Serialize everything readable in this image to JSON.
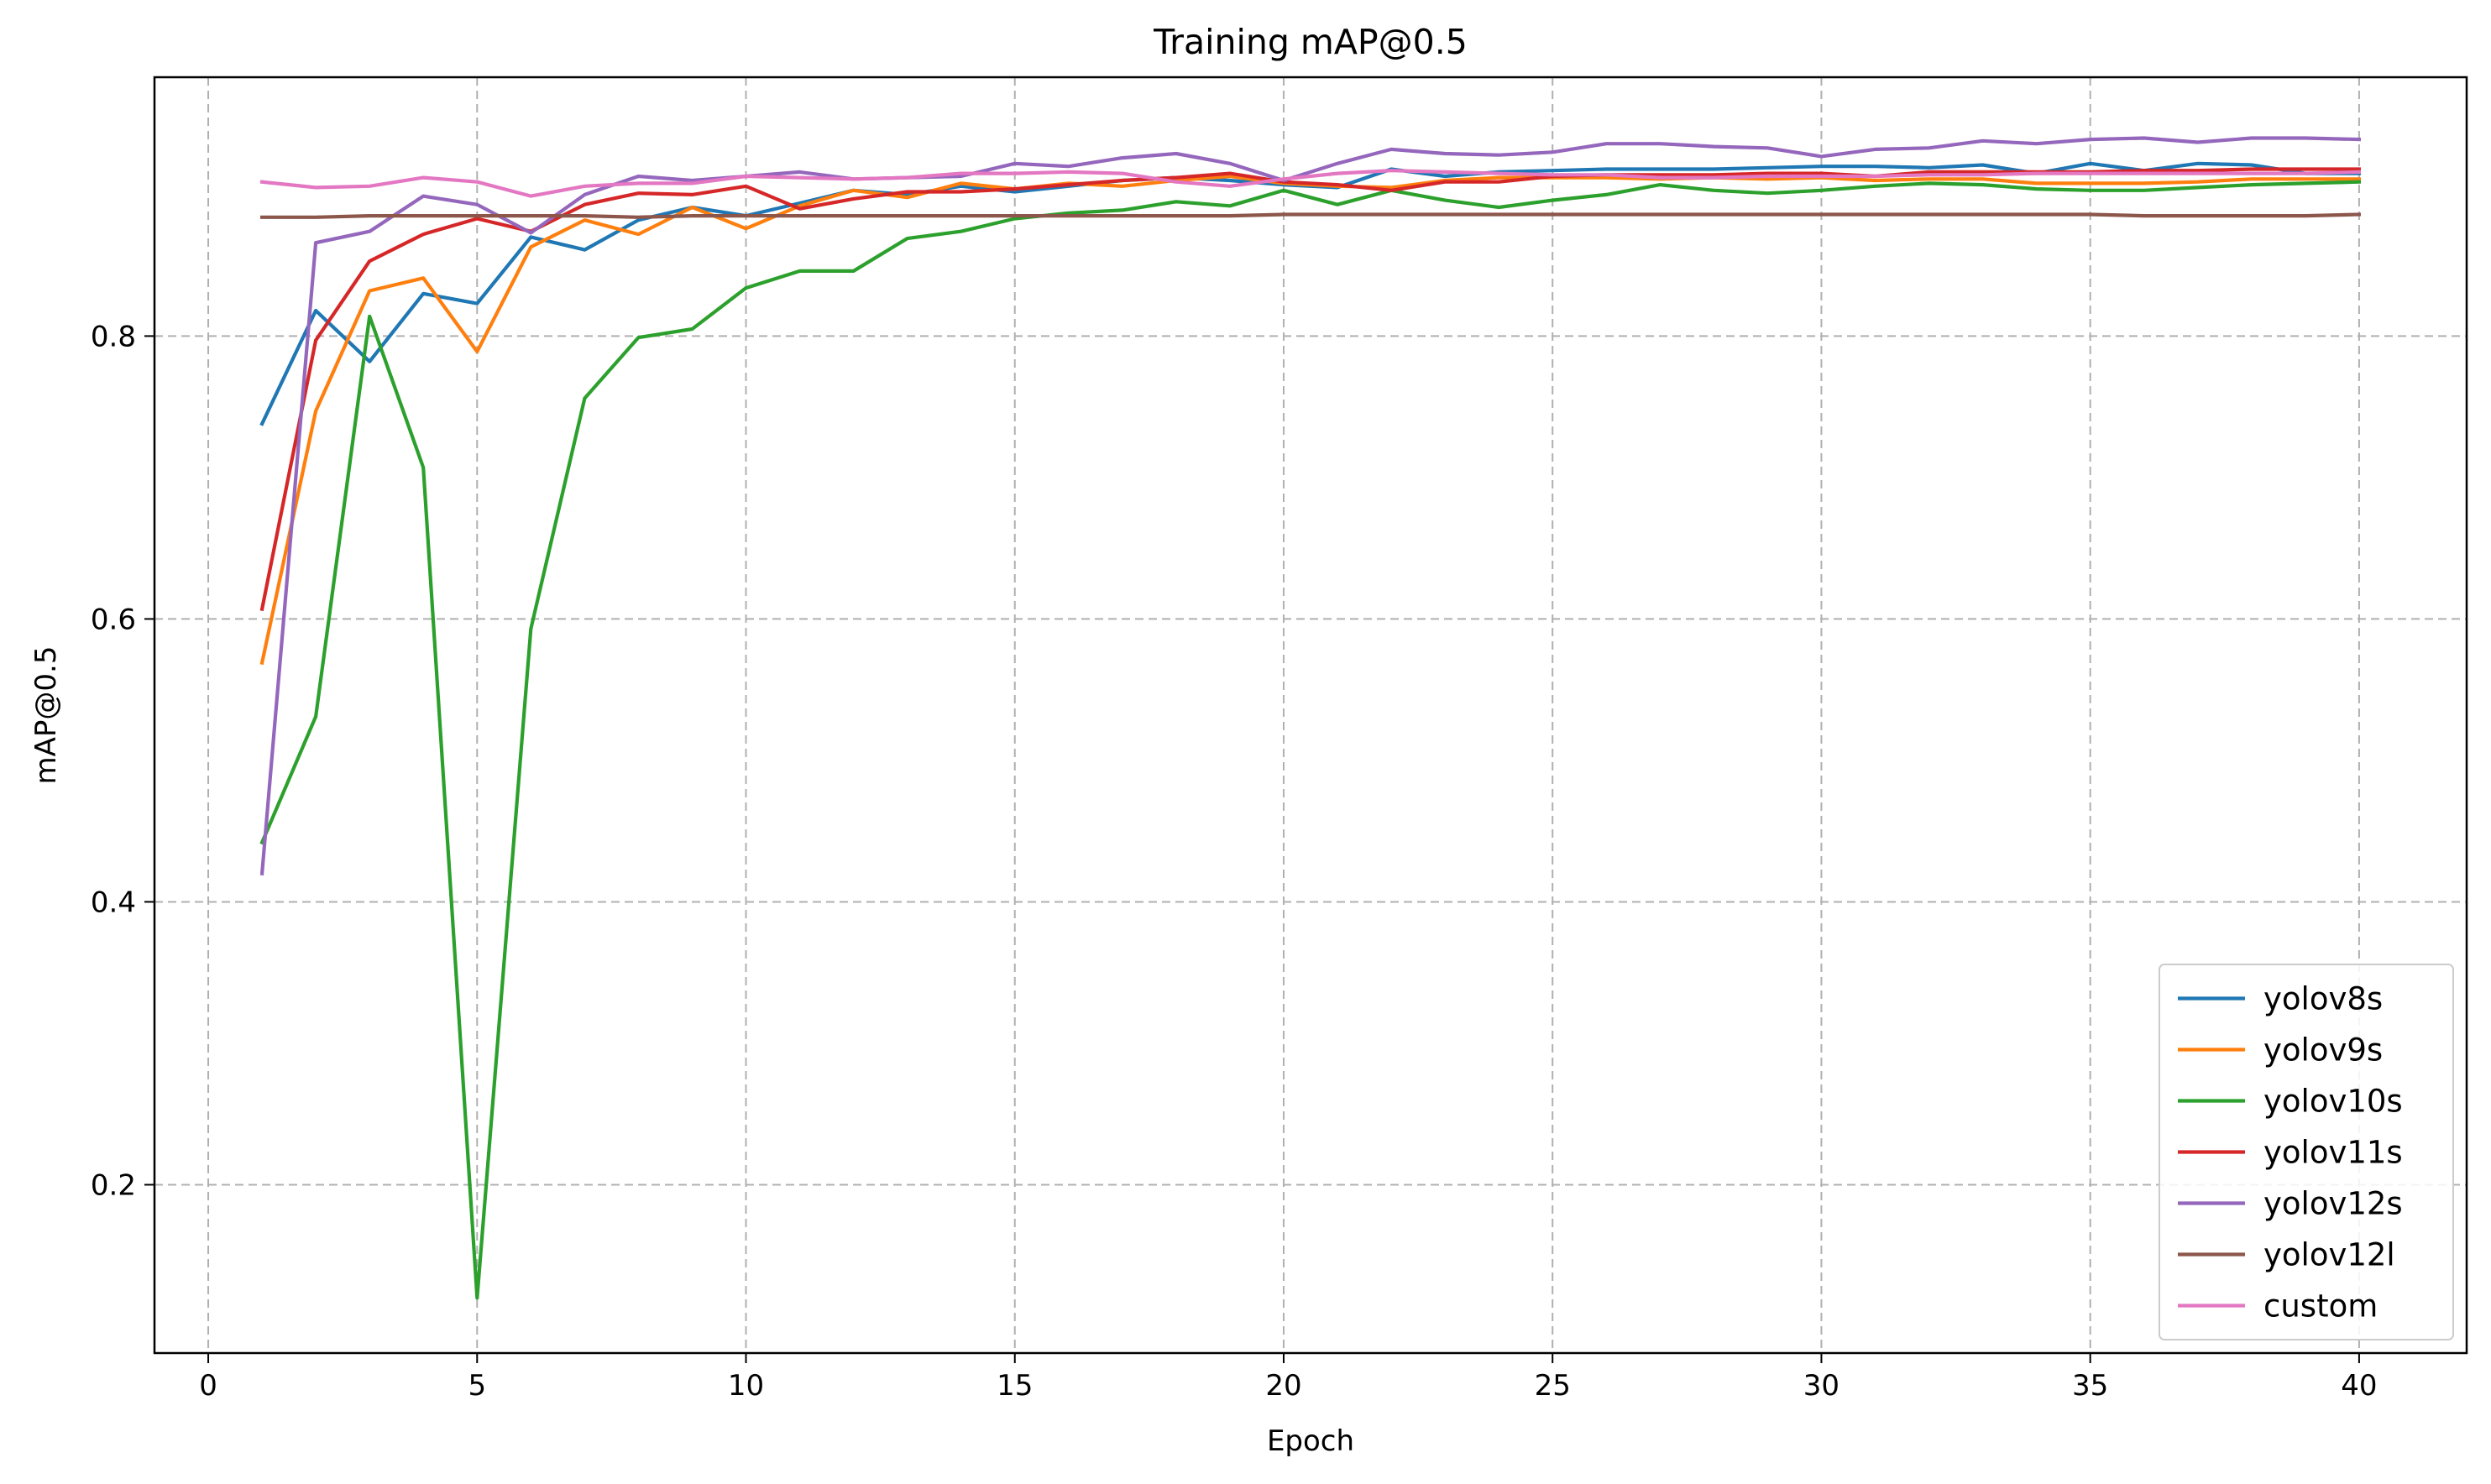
{
  "chart_data": {
    "type": "line",
    "title": "Training mAP@0.5",
    "xlabel": "Epoch",
    "ylabel": "mAP@0.5",
    "xlim": [
      -1.0,
      42.0
    ],
    "ylim": [
      0.081,
      0.983
    ],
    "xticks": [
      0,
      5,
      10,
      15,
      20,
      25,
      30,
      35,
      40
    ],
    "yticks": [
      0.2,
      0.4,
      0.6,
      0.8
    ],
    "ytick_labels": [
      "0.2",
      "0.4",
      "0.6",
      "0.8"
    ],
    "grid": true,
    "legend_position": "lower-right",
    "x": [
      1,
      2,
      3,
      4,
      5,
      6,
      7,
      8,
      9,
      10,
      11,
      12,
      13,
      14,
      15,
      16,
      17,
      18,
      19,
      20,
      21,
      22,
      23,
      24,
      25,
      26,
      27,
      28,
      29,
      30,
      31,
      32,
      33,
      34,
      35,
      36,
      37,
      38,
      39,
      40
    ],
    "series": [
      {
        "name": "yolov8s",
        "color": "#1f77b4",
        "values": [
          0.738,
          0.818,
          0.782,
          0.83,
          0.823,
          0.87,
          0.861,
          0.882,
          0.891,
          0.885,
          0.894,
          0.903,
          0.9,
          0.906,
          0.902,
          0.906,
          0.91,
          0.912,
          0.91,
          0.907,
          0.905,
          0.918,
          0.913,
          0.916,
          0.917,
          0.918,
          0.918,
          0.918,
          0.919,
          0.92,
          0.92,
          0.919,
          0.921,
          0.915,
          0.922,
          0.917,
          0.922,
          0.921,
          0.915,
          0.915
        ]
      },
      {
        "name": "yolov9s",
        "color": "#ff7f0e",
        "values": [
          0.569,
          0.747,
          0.832,
          0.841,
          0.789,
          0.863,
          0.882,
          0.872,
          0.891,
          0.876,
          0.892,
          0.903,
          0.898,
          0.908,
          0.904,
          0.908,
          0.906,
          0.91,
          0.913,
          0.908,
          0.906,
          0.905,
          0.91,
          0.912,
          0.912,
          0.912,
          0.911,
          0.912,
          0.911,
          0.912,
          0.91,
          0.911,
          0.911,
          0.908,
          0.908,
          0.908,
          0.909,
          0.911,
          0.911,
          0.911
        ]
      },
      {
        "name": "yolov10s",
        "color": "#2ca02c",
        "values": [
          0.442,
          0.531,
          0.814,
          0.707,
          0.12,
          0.593,
          0.756,
          0.799,
          0.805,
          0.834,
          0.846,
          0.846,
          0.869,
          0.874,
          0.883,
          0.887,
          0.889,
          0.895,
          0.892,
          0.903,
          0.893,
          0.903,
          0.896,
          0.891,
          0.896,
          0.9,
          0.907,
          0.903,
          0.901,
          0.903,
          0.906,
          0.908,
          0.907,
          0.904,
          0.903,
          0.903,
          0.905,
          0.907,
          0.908,
          0.909
        ]
      },
      {
        "name": "yolov11s",
        "color": "#d62728",
        "values": [
          0.607,
          0.797,
          0.853,
          0.872,
          0.883,
          0.874,
          0.893,
          0.901,
          0.9,
          0.906,
          0.89,
          0.897,
          0.902,
          0.902,
          0.904,
          0.907,
          0.91,
          0.912,
          0.915,
          0.909,
          0.907,
          0.903,
          0.909,
          0.909,
          0.913,
          0.914,
          0.914,
          0.914,
          0.915,
          0.915,
          0.913,
          0.916,
          0.916,
          0.916,
          0.916,
          0.917,
          0.917,
          0.918,
          0.918,
          0.918
        ]
      },
      {
        "name": "yolov12s",
        "color": "#9467bd",
        "values": [
          0.42,
          0.866,
          0.874,
          0.899,
          0.893,
          0.873,
          0.9,
          0.913,
          0.91,
          0.913,
          0.916,
          0.911,
          0.912,
          0.913,
          0.922,
          0.92,
          0.926,
          0.929,
          0.922,
          0.91,
          0.922,
          0.932,
          0.929,
          0.928,
          0.93,
          0.936,
          0.936,
          0.934,
          0.933,
          0.927,
          0.932,
          0.933,
          0.938,
          0.936,
          0.939,
          0.94,
          0.937,
          0.94,
          0.94,
          0.939
        ]
      },
      {
        "name": "yolov12l",
        "color": "#8c564b",
        "values": [
          0.884,
          0.884,
          0.885,
          0.885,
          0.885,
          0.885,
          0.885,
          0.884,
          0.885,
          0.885,
          0.885,
          0.885,
          0.885,
          0.885,
          0.885,
          0.885,
          0.885,
          0.885,
          0.885,
          0.886,
          0.886,
          0.886,
          0.886,
          0.886,
          0.886,
          0.886,
          0.886,
          0.886,
          0.886,
          0.886,
          0.886,
          0.886,
          0.886,
          0.886,
          0.886,
          0.885,
          0.885,
          0.885,
          0.885,
          0.886
        ]
      },
      {
        "name": "custom",
        "color": "#e377c2",
        "values": [
          0.909,
          0.905,
          0.906,
          0.912,
          0.909,
          0.899,
          0.906,
          0.908,
          0.908,
          0.913,
          0.912,
          0.911,
          0.912,
          0.915,
          0.915,
          0.916,
          0.915,
          0.909,
          0.906,
          0.911,
          0.915,
          0.917,
          0.916,
          0.915,
          0.914,
          0.914,
          0.912,
          0.912,
          0.913,
          0.913,
          0.913,
          0.914,
          0.914,
          0.915,
          0.915,
          0.915,
          0.915,
          0.915,
          0.915,
          0.916
        ]
      }
    ]
  }
}
